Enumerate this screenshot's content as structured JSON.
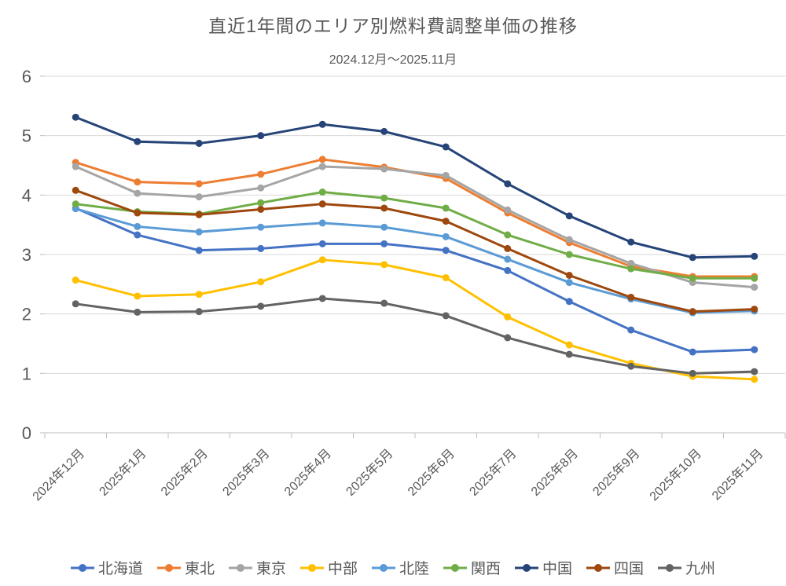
{
  "chart": {
    "title": "直近1年間のエリア別燃料費調整単価の推移",
    "subtitle": "2024.12月～2025.11月"
  },
  "chart_data": {
    "type": "line",
    "title": "直近1年間のエリア別燃料費調整単価の推移",
    "subtitle": "2024.12月～2025.11月",
    "categories": [
      "2024年12月",
      "2025年1月",
      "2025年2月",
      "2025年3月",
      "2025年4月",
      "2025年5月",
      "2025年6月",
      "2025年7月",
      "2025年8月",
      "2025年9月",
      "2025年10月",
      "2025年11月"
    ],
    "series": [
      {
        "id": "hokkaido",
        "name": "北海道",
        "color": "#4472C4",
        "values": [
          3.78,
          3.33,
          3.07,
          3.1,
          3.18,
          3.18,
          3.07,
          2.73,
          2.21,
          1.73,
          1.36,
          1.4
        ]
      },
      {
        "id": "tohoku",
        "name": "東北",
        "color": "#ED7D31",
        "values": [
          4.55,
          4.22,
          4.19,
          4.35,
          4.6,
          4.47,
          4.28,
          3.7,
          3.2,
          2.8,
          2.63,
          2.63
        ]
      },
      {
        "id": "tokyo",
        "name": "東京",
        "color": "#A5A5A5",
        "values": [
          4.48,
          4.03,
          3.97,
          4.12,
          4.48,
          4.44,
          4.33,
          3.75,
          3.25,
          2.85,
          2.53,
          2.45
        ]
      },
      {
        "id": "chubu",
        "name": "中部",
        "color": "#FFC000",
        "values": [
          2.57,
          2.3,
          2.33,
          2.54,
          2.91,
          2.83,
          2.61,
          1.95,
          1.48,
          1.17,
          0.95,
          0.9
        ]
      },
      {
        "id": "hokuriku",
        "name": "北陸",
        "color": "#5B9BD5",
        "values": [
          3.77,
          3.47,
          3.38,
          3.46,
          3.53,
          3.46,
          3.3,
          2.92,
          2.53,
          2.25,
          2.02,
          2.05
        ]
      },
      {
        "id": "kansai",
        "name": "関西",
        "color": "#70AD47",
        "values": [
          3.85,
          3.72,
          3.68,
          3.87,
          4.05,
          3.95,
          3.78,
          3.33,
          3.0,
          2.76,
          2.6,
          2.6
        ]
      },
      {
        "id": "chugoku",
        "name": "中国",
        "color": "#264478",
        "values": [
          5.31,
          4.9,
          4.87,
          5.0,
          5.19,
          5.07,
          4.81,
          4.19,
          3.65,
          3.21,
          2.95,
          2.97
        ]
      },
      {
        "id": "shikoku",
        "name": "四国",
        "color": "#9E480E",
        "values": [
          4.08,
          3.7,
          3.67,
          3.76,
          3.85,
          3.78,
          3.56,
          3.1,
          2.65,
          2.28,
          2.04,
          2.08
        ]
      },
      {
        "id": "kyushu",
        "name": "九州",
        "color": "#636363",
        "values": [
          2.17,
          2.03,
          2.04,
          2.13,
          2.26,
          2.18,
          1.97,
          1.6,
          1.32,
          1.12,
          1.0,
          1.03
        ]
      }
    ],
    "ylim": [
      0,
      6
    ],
    "yticks": [
      0,
      1,
      2,
      3,
      4,
      5,
      6
    ],
    "grid": true,
    "legend_position": "bottom",
    "text_color": "#595959",
    "grid_color": "#D9D9D9",
    "axis_color": "#BFBFBF"
  }
}
